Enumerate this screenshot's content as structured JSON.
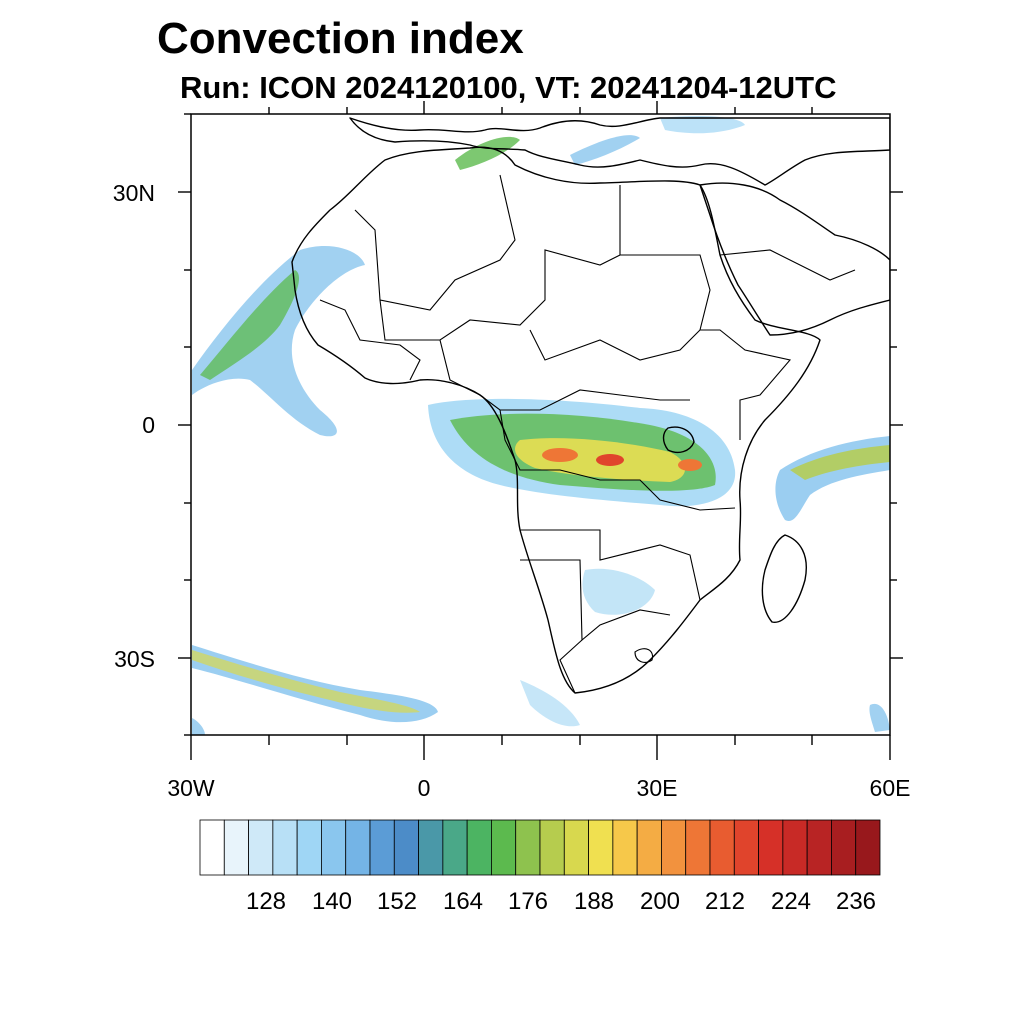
{
  "title": "Convection index",
  "subtitle": "Run: ICON 2024120100,  VT: 20241204-12UTC",
  "axes": {
    "lat_labels": [
      "30N",
      "0",
      "30S"
    ],
    "lon_labels": [
      "30W",
      "0",
      "30E",
      "60E"
    ]
  },
  "colorbar": {
    "labels": [
      "128",
      "140",
      "152",
      "164",
      "176",
      "188",
      "200",
      "212",
      "224",
      "236"
    ],
    "colors": [
      "#ffffff",
      "#e8f4fb",
      "#cfe9f8",
      "#b8e0f6",
      "#9fd6f5",
      "#8ac6ee",
      "#74b4e6",
      "#5b9cd6",
      "#4c8cc8",
      "#4a98a8",
      "#4aa888",
      "#4cb462",
      "#5cba4e",
      "#8ec24e",
      "#b6cc4e",
      "#d8d84e",
      "#f0e050",
      "#f6c84a",
      "#f4ac44",
      "#f2923e",
      "#ee7636",
      "#e85c30",
      "#e0442c",
      "#d63028",
      "#c82a26",
      "#b82424",
      "#a81e20",
      "#98181c"
    ]
  }
}
